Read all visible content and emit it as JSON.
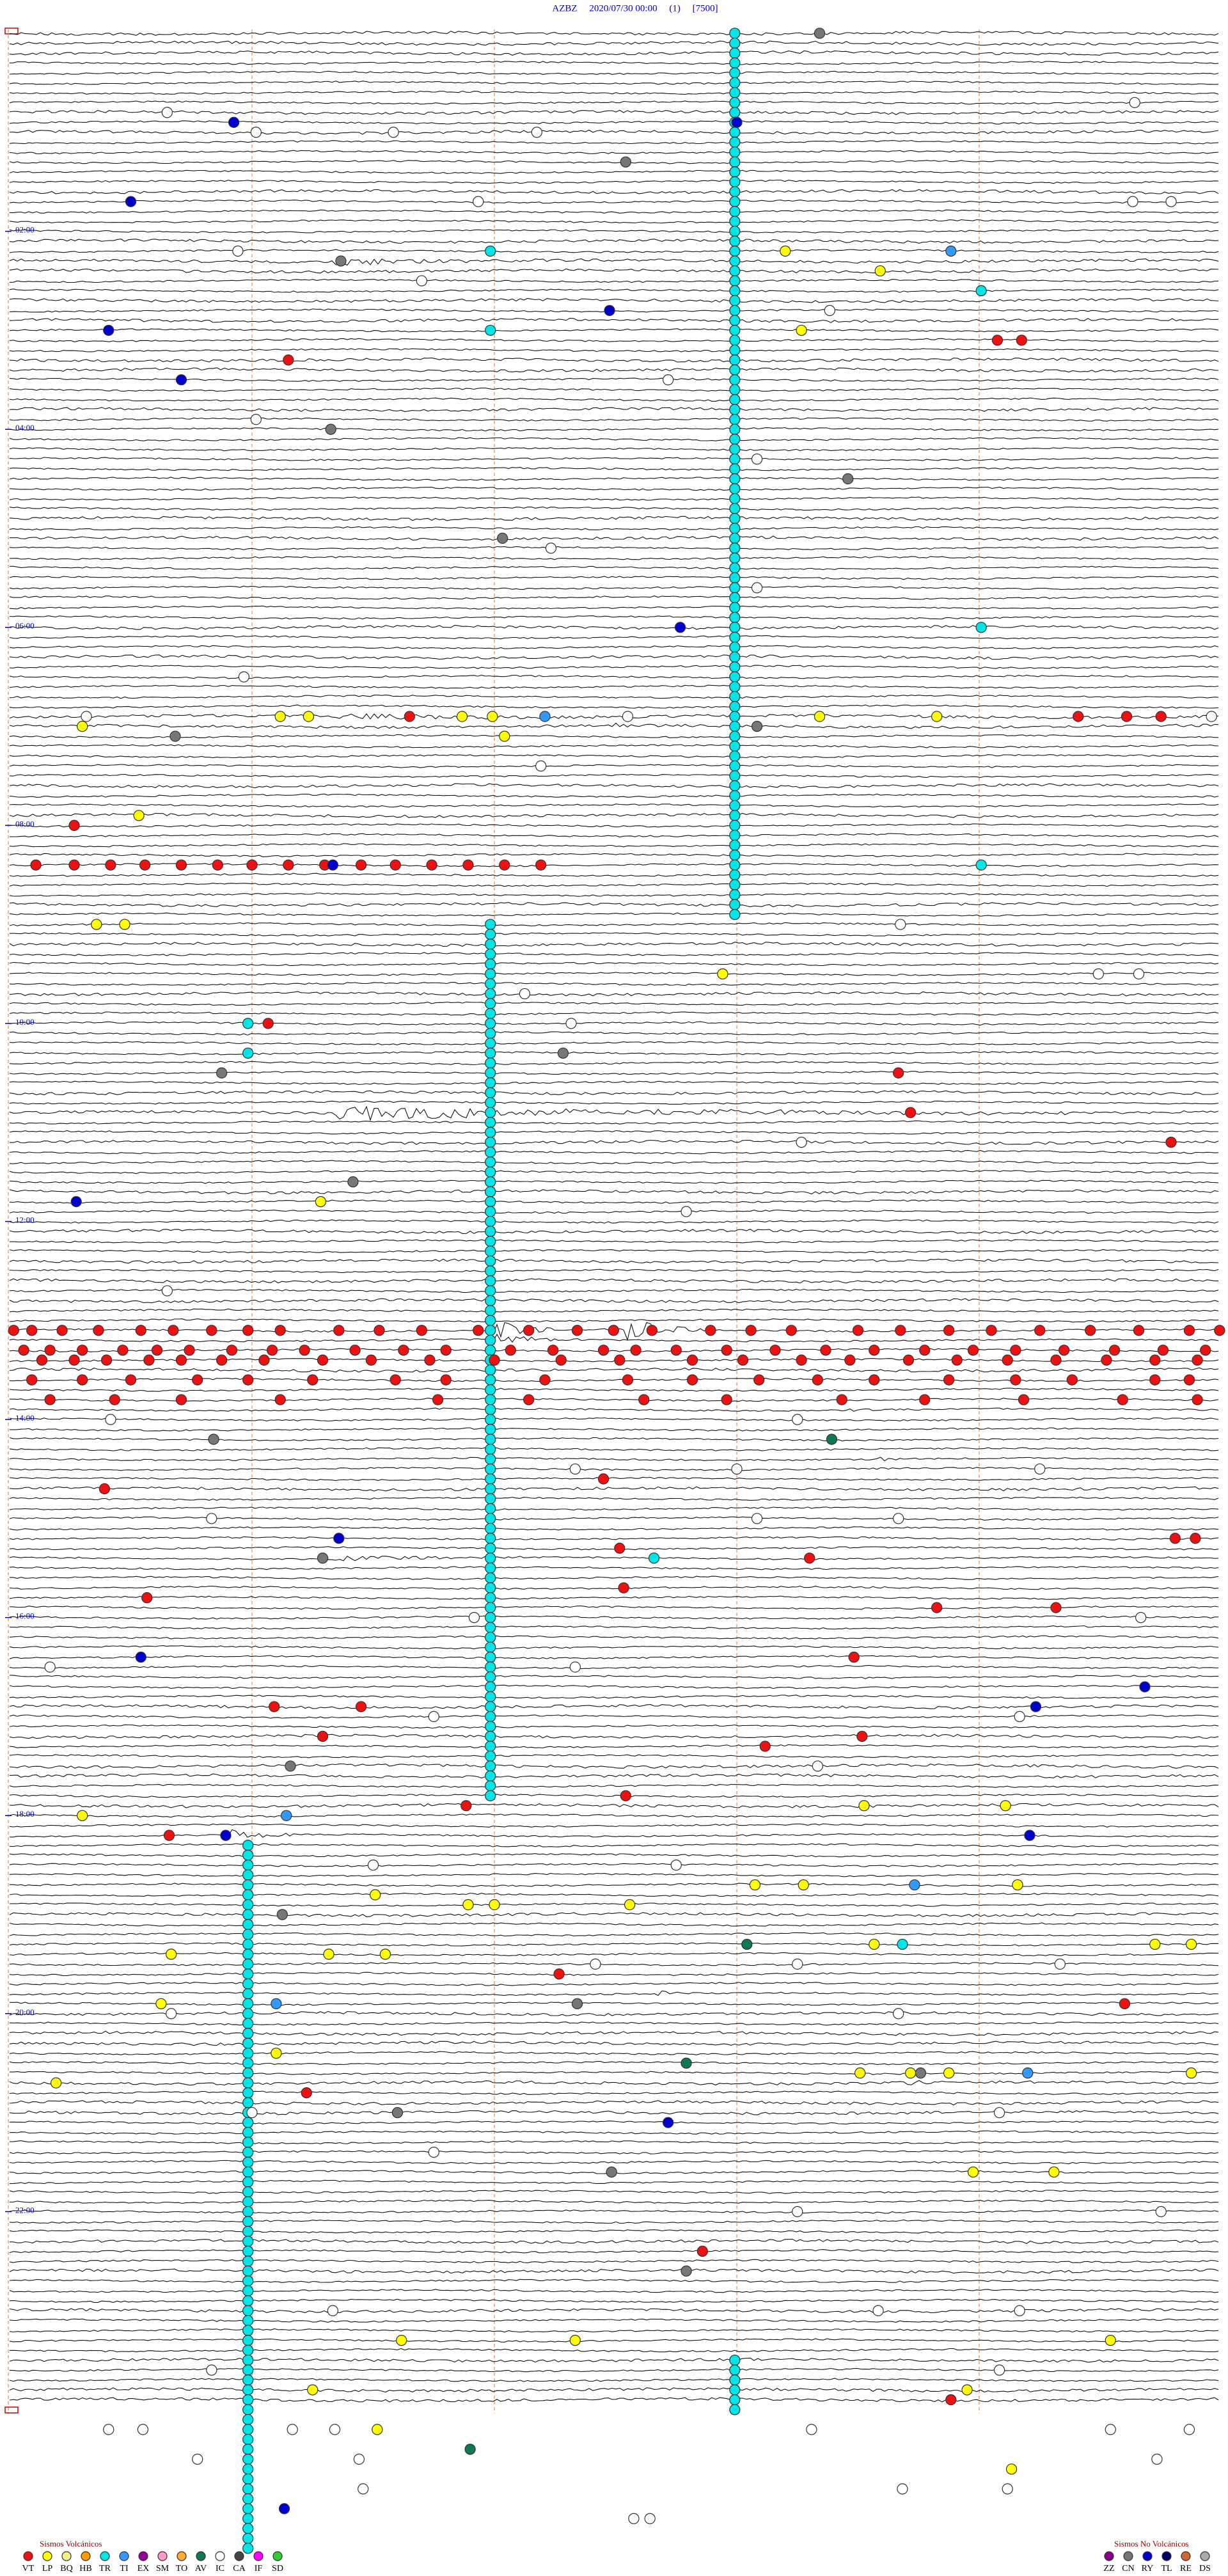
{
  "header": {
    "title": "AZBZ     2020/07/30 00:00     (1)     [7500]"
  },
  "xlim": [
    0,
    6
  ],
  "ylim": [
    0,
    240
  ],
  "hour_labels": [
    {
      "line": 20,
      "label": "02:00"
    },
    {
      "line": 40,
      "label": "04:00"
    },
    {
      "line": 60,
      "label": "06:00"
    },
    {
      "line": 80,
      "label": "08:00"
    },
    {
      "line": 100,
      "label": "10:00"
    },
    {
      "line": 120,
      "label": "12:00"
    },
    {
      "line": 140,
      "label": "14:00"
    },
    {
      "line": 160,
      "label": "16:00"
    },
    {
      "line": 180,
      "label": "18:00"
    },
    {
      "line": 200,
      "label": "20:00"
    },
    {
      "line": 220,
      "label": "22:00"
    }
  ],
  "legend": {
    "volcanic_title": "Sismos Volcánicos",
    "volcanic": [
      {
        "code": "VT",
        "color": "#ee1111"
      },
      {
        "code": "LP",
        "color": "#ffff00"
      },
      {
        "code": "BQ",
        "color": "#f4f08a"
      },
      {
        "code": "HB",
        "color": "#ff9900"
      },
      {
        "code": "TR",
        "color": "#00e5e5"
      },
      {
        "code": "TI",
        "color": "#3399ff"
      },
      {
        "code": "EX",
        "color": "#990099"
      },
      {
        "code": "SM",
        "color": "#ff99cc"
      },
      {
        "code": "TO",
        "color": "#ffaa33"
      },
      {
        "code": "AV",
        "color": "#117755"
      },
      {
        "code": "IC",
        "color": "#ffffff"
      },
      {
        "code": "CA",
        "color": "#444444"
      },
      {
        "code": "IF",
        "color": "#ff00ff"
      },
      {
        "code": "SD",
        "color": "#33cc33"
      }
    ],
    "non_volcanic_title": "Sismos No Volcánicos",
    "non_volcanic": [
      {
        "code": "ZZ",
        "color": "#880088"
      },
      {
        "code": "CN",
        "color": "#777777"
      },
      {
        "code": "RY",
        "color": "#0000cc"
      },
      {
        "code": "TL",
        "color": "#000066"
      },
      {
        "code": "RE",
        "color": "#cc6633"
      },
      {
        "code": "DS",
        "color": "#aaaaaa"
      }
    ]
  },
  "columns": [
    {
      "type": "TR",
      "minute": 3.59,
      "lines": [
        0,
        89
      ]
    },
    {
      "type": "TR",
      "minute": 2.38,
      "lines": [
        90,
        178
      ]
    },
    {
      "type": "TR",
      "minute": 1.18,
      "lines": [
        183,
        254
      ]
    },
    {
      "type": "TR",
      "minute": 3.59,
      "lines": [
        235,
        240
      ]
    }
  ],
  "events": [
    {
      "type": "CN",
      "line": 0,
      "minutes": [
        4.01
      ]
    },
    {
      "type": "IC",
      "line": 7,
      "minutes": [
        5.57
      ]
    },
    {
      "type": "IC",
      "line": 8,
      "minutes": [
        0.78
      ]
    },
    {
      "type": "RY",
      "line": 9,
      "minutes": [
        1.11,
        3.6
      ]
    },
    {
      "type": "IC",
      "line": 10,
      "minutes": [
        1.22,
        1.9,
        2.61
      ]
    },
    {
      "type": "CN",
      "line": 13,
      "minutes": [
        3.05
      ]
    },
    {
      "type": "RY",
      "line": 17,
      "minutes": [
        0.6
      ]
    },
    {
      "type": "IC",
      "line": 17,
      "minutes": [
        2.32,
        5.56,
        5.75
      ]
    },
    {
      "type": "IC",
      "line": 22,
      "minutes": [
        1.13
      ]
    },
    {
      "type": "CN",
      "line": 23,
      "minutes": [
        1.64
      ]
    },
    {
      "type": "TR",
      "line": 22,
      "minutes": [
        2.38
      ]
    },
    {
      "type": "LP",
      "line": 22,
      "minutes": [
        3.84
      ]
    },
    {
      "type": "TI",
      "line": 22,
      "minutes": [
        4.66
      ]
    },
    {
      "type": "LP",
      "line": 24,
      "minutes": [
        4.31
      ]
    },
    {
      "type": "IC",
      "line": 25,
      "minutes": [
        2.04
      ]
    },
    {
      "type": "TR",
      "line": 26,
      "minutes": [
        4.81
      ]
    },
    {
      "type": "RY",
      "line": 28,
      "minutes": [
        2.97
      ]
    },
    {
      "type": "IC",
      "line": 28,
      "minutes": [
        4.06
      ]
    },
    {
      "type": "LP",
      "line": 30,
      "minutes": [
        3.92
      ]
    },
    {
      "type": "RY",
      "line": 30,
      "minutes": [
        0.49
      ]
    },
    {
      "type": "TR",
      "line": 30,
      "minutes": [
        2.38
      ]
    },
    {
      "type": "VT",
      "line": 31,
      "minutes": [
        4.89,
        5.01
      ]
    },
    {
      "type": "VT",
      "line": 33,
      "minutes": [
        1.38
      ]
    },
    {
      "type": "RY",
      "line": 35,
      "minutes": [
        0.85
      ]
    },
    {
      "type": "IC",
      "line": 35,
      "minutes": [
        3.26
      ]
    },
    {
      "type": "IC",
      "line": 39,
      "minutes": [
        1.22
      ]
    },
    {
      "type": "CN",
      "line": 40,
      "minutes": [
        1.59
      ]
    },
    {
      "type": "IC",
      "line": 43,
      "minutes": [
        3.7
      ]
    },
    {
      "type": "CN",
      "line": 45,
      "minutes": [
        4.15
      ]
    },
    {
      "type": "CN",
      "line": 51,
      "minutes": [
        2.44
      ]
    },
    {
      "type": "IC",
      "line": 52,
      "minutes": [
        2.68
      ]
    },
    {
      "type": "IC",
      "line": 56,
      "minutes": [
        3.7
      ]
    },
    {
      "type": "RY",
      "line": 60,
      "minutes": [
        3.32
      ]
    },
    {
      "type": "TR",
      "line": 60,
      "minutes": [
        4.81
      ]
    },
    {
      "type": "IC",
      "line": 65,
      "minutes": [
        1.16
      ]
    },
    {
      "type": "LP",
      "line": 69,
      "minutes": [
        1.34,
        1.48,
        2.24,
        2.39,
        4.01,
        4.59
      ]
    },
    {
      "type": "VT",
      "line": 69,
      "minutes": [
        1.98,
        5.29,
        5.53,
        5.7
      ]
    },
    {
      "type": "TI",
      "line": 69,
      "minutes": [
        2.65
      ]
    },
    {
      "type": "IC",
      "line": 69,
      "minutes": [
        0.38,
        3.06,
        5.95
      ]
    },
    {
      "type": "CN",
      "line": 70,
      "minutes": [
        3.7
      ]
    },
    {
      "type": "LP",
      "line": 70,
      "minutes": [
        0.36
      ]
    },
    {
      "type": "CN",
      "line": 71,
      "minutes": [
        0.82
      ]
    },
    {
      "type": "LP",
      "line": 71,
      "minutes": [
        2.45
      ]
    },
    {
      "type": "IC",
      "line": 74,
      "minutes": [
        2.63
      ]
    },
    {
      "type": "LP",
      "line": 79,
      "minutes": [
        0.64
      ]
    },
    {
      "type": "VT",
      "line": 80,
      "minutes": [
        0.32
      ]
    },
    {
      "type": "VT",
      "line": 84,
      "minutes": [
        0.13,
        0.32,
        0.5,
        0.67,
        0.85,
        1.03,
        1.2,
        1.38,
        1.56,
        1.74,
        1.91,
        2.09,
        2.27,
        2.45,
        2.63
      ]
    },
    {
      "type": "RY",
      "line": 84,
      "minutes": [
        1.6
      ]
    },
    {
      "type": "TR",
      "line": 84,
      "minutes": [
        4.81
      ]
    },
    {
      "type": "IC",
      "line": 90,
      "minutes": [
        4.41
      ]
    },
    {
      "type": "LP",
      "line": 90,
      "minutes": [
        0.43,
        0.57
      ]
    },
    {
      "type": "LP",
      "line": 95,
      "minutes": [
        3.53
      ]
    },
    {
      "type": "IC",
      "line": 95,
      "minutes": [
        5.39,
        5.59
      ]
    },
    {
      "type": "IC",
      "line": 97,
      "minutes": [
        2.55
      ]
    },
    {
      "type": "TR",
      "line": 100,
      "minutes": [
        1.18
      ]
    },
    {
      "type": "VT",
      "line": 100,
      "minutes": [
        1.28
      ]
    },
    {
      "type": "IC",
      "line": 100,
      "minutes": [
        2.78
      ]
    },
    {
      "type": "TR",
      "line": 103,
      "minutes": [
        1.18
      ]
    },
    {
      "type": "CN",
      "line": 103,
      "minutes": [
        2.74
      ]
    },
    {
      "type": "CN",
      "line": 105,
      "minutes": [
        1.05
      ]
    },
    {
      "type": "VT",
      "line": 105,
      "minutes": [
        4.4
      ]
    },
    {
      "type": "VT",
      "line": 109,
      "minutes": [
        4.46
      ]
    },
    {
      "type": "IC",
      "line": 112,
      "minutes": [
        3.92
      ]
    },
    {
      "type": "VT",
      "line": 112,
      "minutes": [
        5.75
      ]
    },
    {
      "type": "CN",
      "line": 116,
      "minutes": [
        1.7
      ]
    },
    {
      "type": "LP",
      "line": 118,
      "minutes": [
        1.54
      ]
    },
    {
      "type": "RY",
      "line": 118,
      "minutes": [
        0.33
      ]
    },
    {
      "type": "IC",
      "line": 119,
      "minutes": [
        3.35
      ]
    },
    {
      "type": "IC",
      "line": 127,
      "minutes": [
        0.78
      ]
    },
    {
      "type": "VT",
      "line": 131,
      "minutes": [
        0.02,
        0.11,
        0.26,
        0.44,
        0.65,
        0.81,
        1.0,
        1.18,
        1.34,
        1.63,
        1.83,
        2.04,
        2.32,
        2.57,
        2.81,
        2.99,
        3.18,
        3.47,
        3.67,
        3.87,
        4.2,
        4.41,
        4.65,
        4.86,
        5.1,
        5.35,
        5.59,
        5.84,
        5.99
      ]
    },
    {
      "type": "VT",
      "line": 133,
      "minutes": [
        0.07,
        0.2,
        0.36,
        0.56,
        0.73,
        0.89,
        1.1,
        1.3,
        1.46,
        1.71,
        1.95,
        2.16,
        2.48,
        2.69,
        2.94,
        3.1,
        3.3,
        3.55,
        3.79,
        4.04,
        4.28,
        4.53,
        4.77,
        4.98,
        5.22,
        5.47,
        5.71,
        5.92
      ]
    },
    {
      "type": "VT",
      "line": 134,
      "minutes": [
        0.16,
        0.32,
        0.48,
        0.69,
        0.85,
        1.05,
        1.26,
        1.55,
        1.79,
        2.08,
        2.4,
        2.73,
        3.02,
        3.38,
        3.63,
        3.92,
        4.16,
        4.45,
        4.69,
        4.94,
        5.18,
        5.43,
        5.67,
        5.88
      ]
    },
    {
      "type": "VT",
      "line": 136,
      "minutes": [
        0.11,
        0.36,
        0.6,
        0.93,
        1.18,
        1.5,
        1.91,
        2.16,
        2.65,
        3.06,
        3.38,
        3.71,
        4.0,
        4.28,
        4.65,
        4.98,
        5.26,
        5.67,
        5.84
      ]
    },
    {
      "type": "VT",
      "line": 138,
      "minutes": [
        0.2,
        0.52,
        0.85,
        1.34,
        2.12,
        2.57,
        3.14,
        3.55,
        4.12,
        4.53,
        5.02,
        5.51,
        5.88
      ]
    },
    {
      "type": "IC",
      "line": 140,
      "minutes": [
        0.5,
        3.9
      ]
    },
    {
      "type": "AV",
      "line": 142,
      "minutes": [
        4.07
      ]
    },
    {
      "type": "CN",
      "line": 142,
      "minutes": [
        1.01
      ]
    },
    {
      "type": "IC",
      "line": 145,
      "minutes": [
        2.8,
        3.6,
        5.1
      ]
    },
    {
      "type": "VT",
      "line": 146,
      "minutes": [
        2.94
      ]
    },
    {
      "type": "VT",
      "line": 147,
      "minutes": [
        0.47
      ]
    },
    {
      "type": "IC",
      "line": 150,
      "minutes": [
        1.0,
        3.7,
        4.4
      ]
    },
    {
      "type": "RY",
      "line": 152,
      "minutes": [
        1.63
      ]
    },
    {
      "type": "VT",
      "line": 152,
      "minutes": [
        5.77,
        5.87
      ]
    },
    {
      "type": "VT",
      "line": 153,
      "minutes": [
        3.02
      ]
    },
    {
      "type": "TR",
      "line": 154,
      "minutes": [
        3.19
      ]
    },
    {
      "type": "CN",
      "line": 154,
      "minutes": [
        1.55
      ]
    },
    {
      "type": "VT",
      "line": 154,
      "minutes": [
        3.96
      ]
    },
    {
      "type": "VT",
      "line": 157,
      "minutes": [
        3.04
      ]
    },
    {
      "type": "VT",
      "line": 158,
      "minutes": [
        0.68
      ]
    },
    {
      "type": "VT",
      "line": 159,
      "minutes": [
        4.59,
        5.18
      ]
    },
    {
      "type": "IC",
      "line": 160,
      "minutes": [
        2.3,
        5.6
      ]
    },
    {
      "type": "RY",
      "line": 164,
      "minutes": [
        0.65
      ]
    },
    {
      "type": "VT",
      "line": 164,
      "minutes": [
        4.18
      ]
    },
    {
      "type": "IC",
      "line": 165,
      "minutes": [
        0.2,
        2.8
      ]
    },
    {
      "type": "RY",
      "line": 167,
      "minutes": [
        5.62
      ]
    },
    {
      "type": "VT",
      "line": 169,
      "minutes": [
        1.31,
        1.74
      ]
    },
    {
      "type": "RY",
      "line": 169,
      "minutes": [
        5.08
      ]
    },
    {
      "type": "IC",
      "line": 170,
      "minutes": [
        2.1,
        5.0
      ]
    },
    {
      "type": "VT",
      "line": 172,
      "minutes": [
        1.55,
        4.22
      ]
    },
    {
      "type": "VT",
      "line": 173,
      "minutes": [
        3.74
      ]
    },
    {
      "type": "CN",
      "line": 175,
      "minutes": [
        1.39
      ]
    },
    {
      "type": "IC",
      "line": 175,
      "minutes": [
        4.0
      ]
    },
    {
      "type": "VT",
      "line": 178,
      "minutes": [
        3.05
      ]
    },
    {
      "type": "VT",
      "line": 179,
      "minutes": [
        2.26
      ]
    },
    {
      "type": "LP",
      "line": 179,
      "minutes": [
        4.23,
        4.93
      ]
    },
    {
      "type": "TI",
      "line": 180,
      "minutes": [
        1.37
      ]
    },
    {
      "type": "LP",
      "line": 180,
      "minutes": [
        0.36
      ]
    },
    {
      "type": "VT",
      "line": 182,
      "minutes": [
        0.79
      ]
    },
    {
      "type": "RY",
      "line": 182,
      "minutes": [
        1.07,
        5.05
      ]
    },
    {
      "type": "IC",
      "line": 185,
      "minutes": [
        1.8,
        3.3
      ]
    },
    {
      "type": "LP",
      "line": 187,
      "minutes": [
        3.69,
        3.93,
        4.99
      ]
    },
    {
      "type": "TI",
      "line": 187,
      "minutes": [
        4.48
      ]
    },
    {
      "type": "LP",
      "line": 188,
      "minutes": [
        1.81
      ]
    },
    {
      "type": "LP",
      "line": 189,
      "minutes": [
        2.27,
        2.4,
        3.07
      ]
    },
    {
      "type": "CN",
      "line": 190,
      "minutes": [
        1.35
      ]
    },
    {
      "type": "AV",
      "line": 193,
      "minutes": [
        3.65
      ]
    },
    {
      "type": "LP",
      "line": 193,
      "minutes": [
        4.28,
        5.67,
        5.85
      ]
    },
    {
      "type": "TR",
      "line": 193,
      "minutes": [
        4.42
      ]
    },
    {
      "type": "LP",
      "line": 194,
      "minutes": [
        0.8,
        1.58,
        1.86
      ]
    },
    {
      "type": "IC",
      "line": 195,
      "minutes": [
        2.9,
        3.9,
        5.2
      ]
    },
    {
      "type": "VT",
      "line": 196,
      "minutes": [
        2.72
      ]
    },
    {
      "type": "LP",
      "line": 199,
      "minutes": [
        0.75
      ]
    },
    {
      "type": "TI",
      "line": 199,
      "minutes": [
        1.32
      ]
    },
    {
      "type": "CN",
      "line": 199,
      "minutes": [
        2.81
      ]
    },
    {
      "type": "VT",
      "line": 199,
      "minutes": [
        5.52
      ]
    },
    {
      "type": "IC",
      "line": 200,
      "minutes": [
        0.8,
        4.4
      ]
    },
    {
      "type": "LP",
      "line": 204,
      "minutes": [
        1.32
      ]
    },
    {
      "type": "AV",
      "line": 205,
      "minutes": [
        3.35
      ]
    },
    {
      "type": "LP",
      "line": 206,
      "minutes": [
        4.21,
        4.46,
        4.65,
        5.85
      ]
    },
    {
      "type": "CN",
      "line": 206,
      "minutes": [
        4.51
      ]
    },
    {
      "type": "TI",
      "line": 206,
      "minutes": [
        5.04
      ]
    },
    {
      "type": "LP",
      "line": 207,
      "minutes": [
        0.23
      ]
    },
    {
      "type": "VT",
      "line": 208,
      "minutes": [
        1.47
      ]
    },
    {
      "type": "CN",
      "line": 210,
      "minutes": [
        1.92
      ]
    },
    {
      "type": "IC",
      "line": 210,
      "minutes": [
        1.2,
        4.9
      ]
    },
    {
      "type": "RY",
      "line": 211,
      "minutes": [
        3.26
      ]
    },
    {
      "type": "IC",
      "line": 214,
      "minutes": [
        2.1
      ]
    },
    {
      "type": "CN",
      "line": 216,
      "minutes": [
        2.98
      ]
    },
    {
      "type": "LP",
      "line": 216,
      "minutes": [
        4.77,
        5.17
      ]
    },
    {
      "type": "IC",
      "line": 220,
      "minutes": [
        3.9,
        5.7
      ]
    },
    {
      "type": "VT",
      "line": 224,
      "minutes": [
        3.43
      ]
    },
    {
      "type": "CN",
      "line": 226,
      "minutes": [
        3.35
      ]
    },
    {
      "type": "IC",
      "line": 230,
      "minutes": [
        1.6,
        4.3,
        5.0
      ]
    },
    {
      "type": "LP",
      "line": 233,
      "minutes": [
        1.94,
        2.8,
        5.45
      ]
    },
    {
      "type": "IC",
      "line": 236,
      "minutes": [
        1.0,
        4.9
      ]
    },
    {
      "type": "LP",
      "line": 238,
      "minutes": [
        1.5,
        4.74
      ]
    },
    {
      "type": "VT",
      "line": 239,
      "minutes": [
        4.66
      ]
    },
    {
      "type": "LP",
      "line": 242,
      "minutes": [
        1.82
      ]
    },
    {
      "type": "IC",
      "line": 242,
      "minutes": [
        0.49,
        0.66,
        1.4,
        1.61,
        3.97,
        5.45,
        5.84
      ]
    },
    {
      "type": "AV",
      "line": 244,
      "minutes": [
        2.28
      ]
    },
    {
      "type": "IC",
      "line": 245,
      "minutes": [
        0.93,
        1.73,
        5.68
      ]
    },
    {
      "type": "LP",
      "line": 246,
      "minutes": [
        4.96
      ]
    },
    {
      "type": "IC",
      "line": 248,
      "minutes": [
        1.75,
        4.42,
        4.94
      ]
    },
    {
      "type": "RY",
      "line": 250,
      "minutes": [
        1.36
      ]
    },
    {
      "type": "IC",
      "line": 251,
      "minutes": [
        3.09,
        3.17
      ]
    }
  ]
}
